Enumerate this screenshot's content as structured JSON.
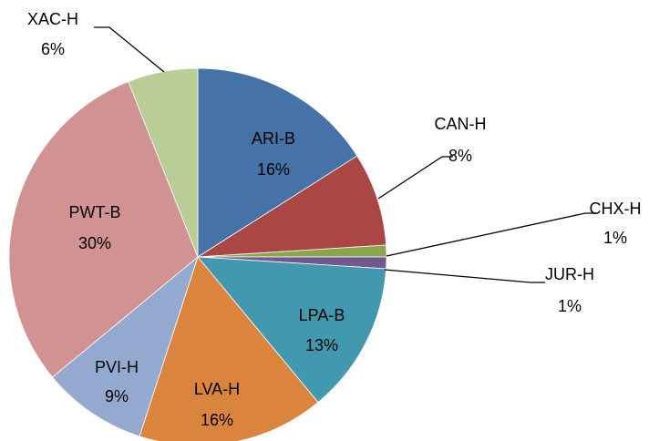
{
  "chart_data": {
    "type": "pie",
    "categories": [
      "ARI-B",
      "CAN-H",
      "CHX-H",
      "JUR-H",
      "LPA-B",
      "LVA-H",
      "PVI-H",
      "PWT-B",
      "XAC-H"
    ],
    "values": [
      16,
      8,
      1,
      1,
      13,
      16,
      9,
      30,
      6
    ],
    "value_labels": [
      "16%",
      "8%",
      "1%",
      "1%",
      "13%",
      "16%",
      "9%",
      "30%",
      "6%"
    ],
    "colors": [
      "#4572a7",
      "#aa4643",
      "#89a54e",
      "#71588f",
      "#4198af",
      "#db843d",
      "#93a9cf",
      "#d19392",
      "#b9cd96"
    ]
  }
}
